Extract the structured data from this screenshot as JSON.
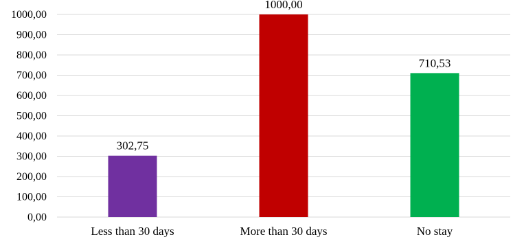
{
  "chart_data": {
    "type": "bar",
    "categories": [
      "Less than 30 days",
      "More than 30 days",
      "No stay"
    ],
    "values": [
      302.75,
      1000.0,
      710.53
    ],
    "data_labels": [
      "302,75",
      "1000,00",
      "710,53"
    ],
    "colors": [
      "#7030a0",
      "#c00000",
      "#00b050"
    ],
    "title": "",
    "xlabel": "",
    "ylabel": "",
    "ylim": [
      0,
      1000
    ],
    "yticks": [
      "0,00",
      "100,00",
      "200,00",
      "300,00",
      "400,00",
      "500,00",
      "600,00",
      "700,00",
      "800,00",
      "900,00",
      "1000,00"
    ],
    "grid": true,
    "legend": "none"
  }
}
